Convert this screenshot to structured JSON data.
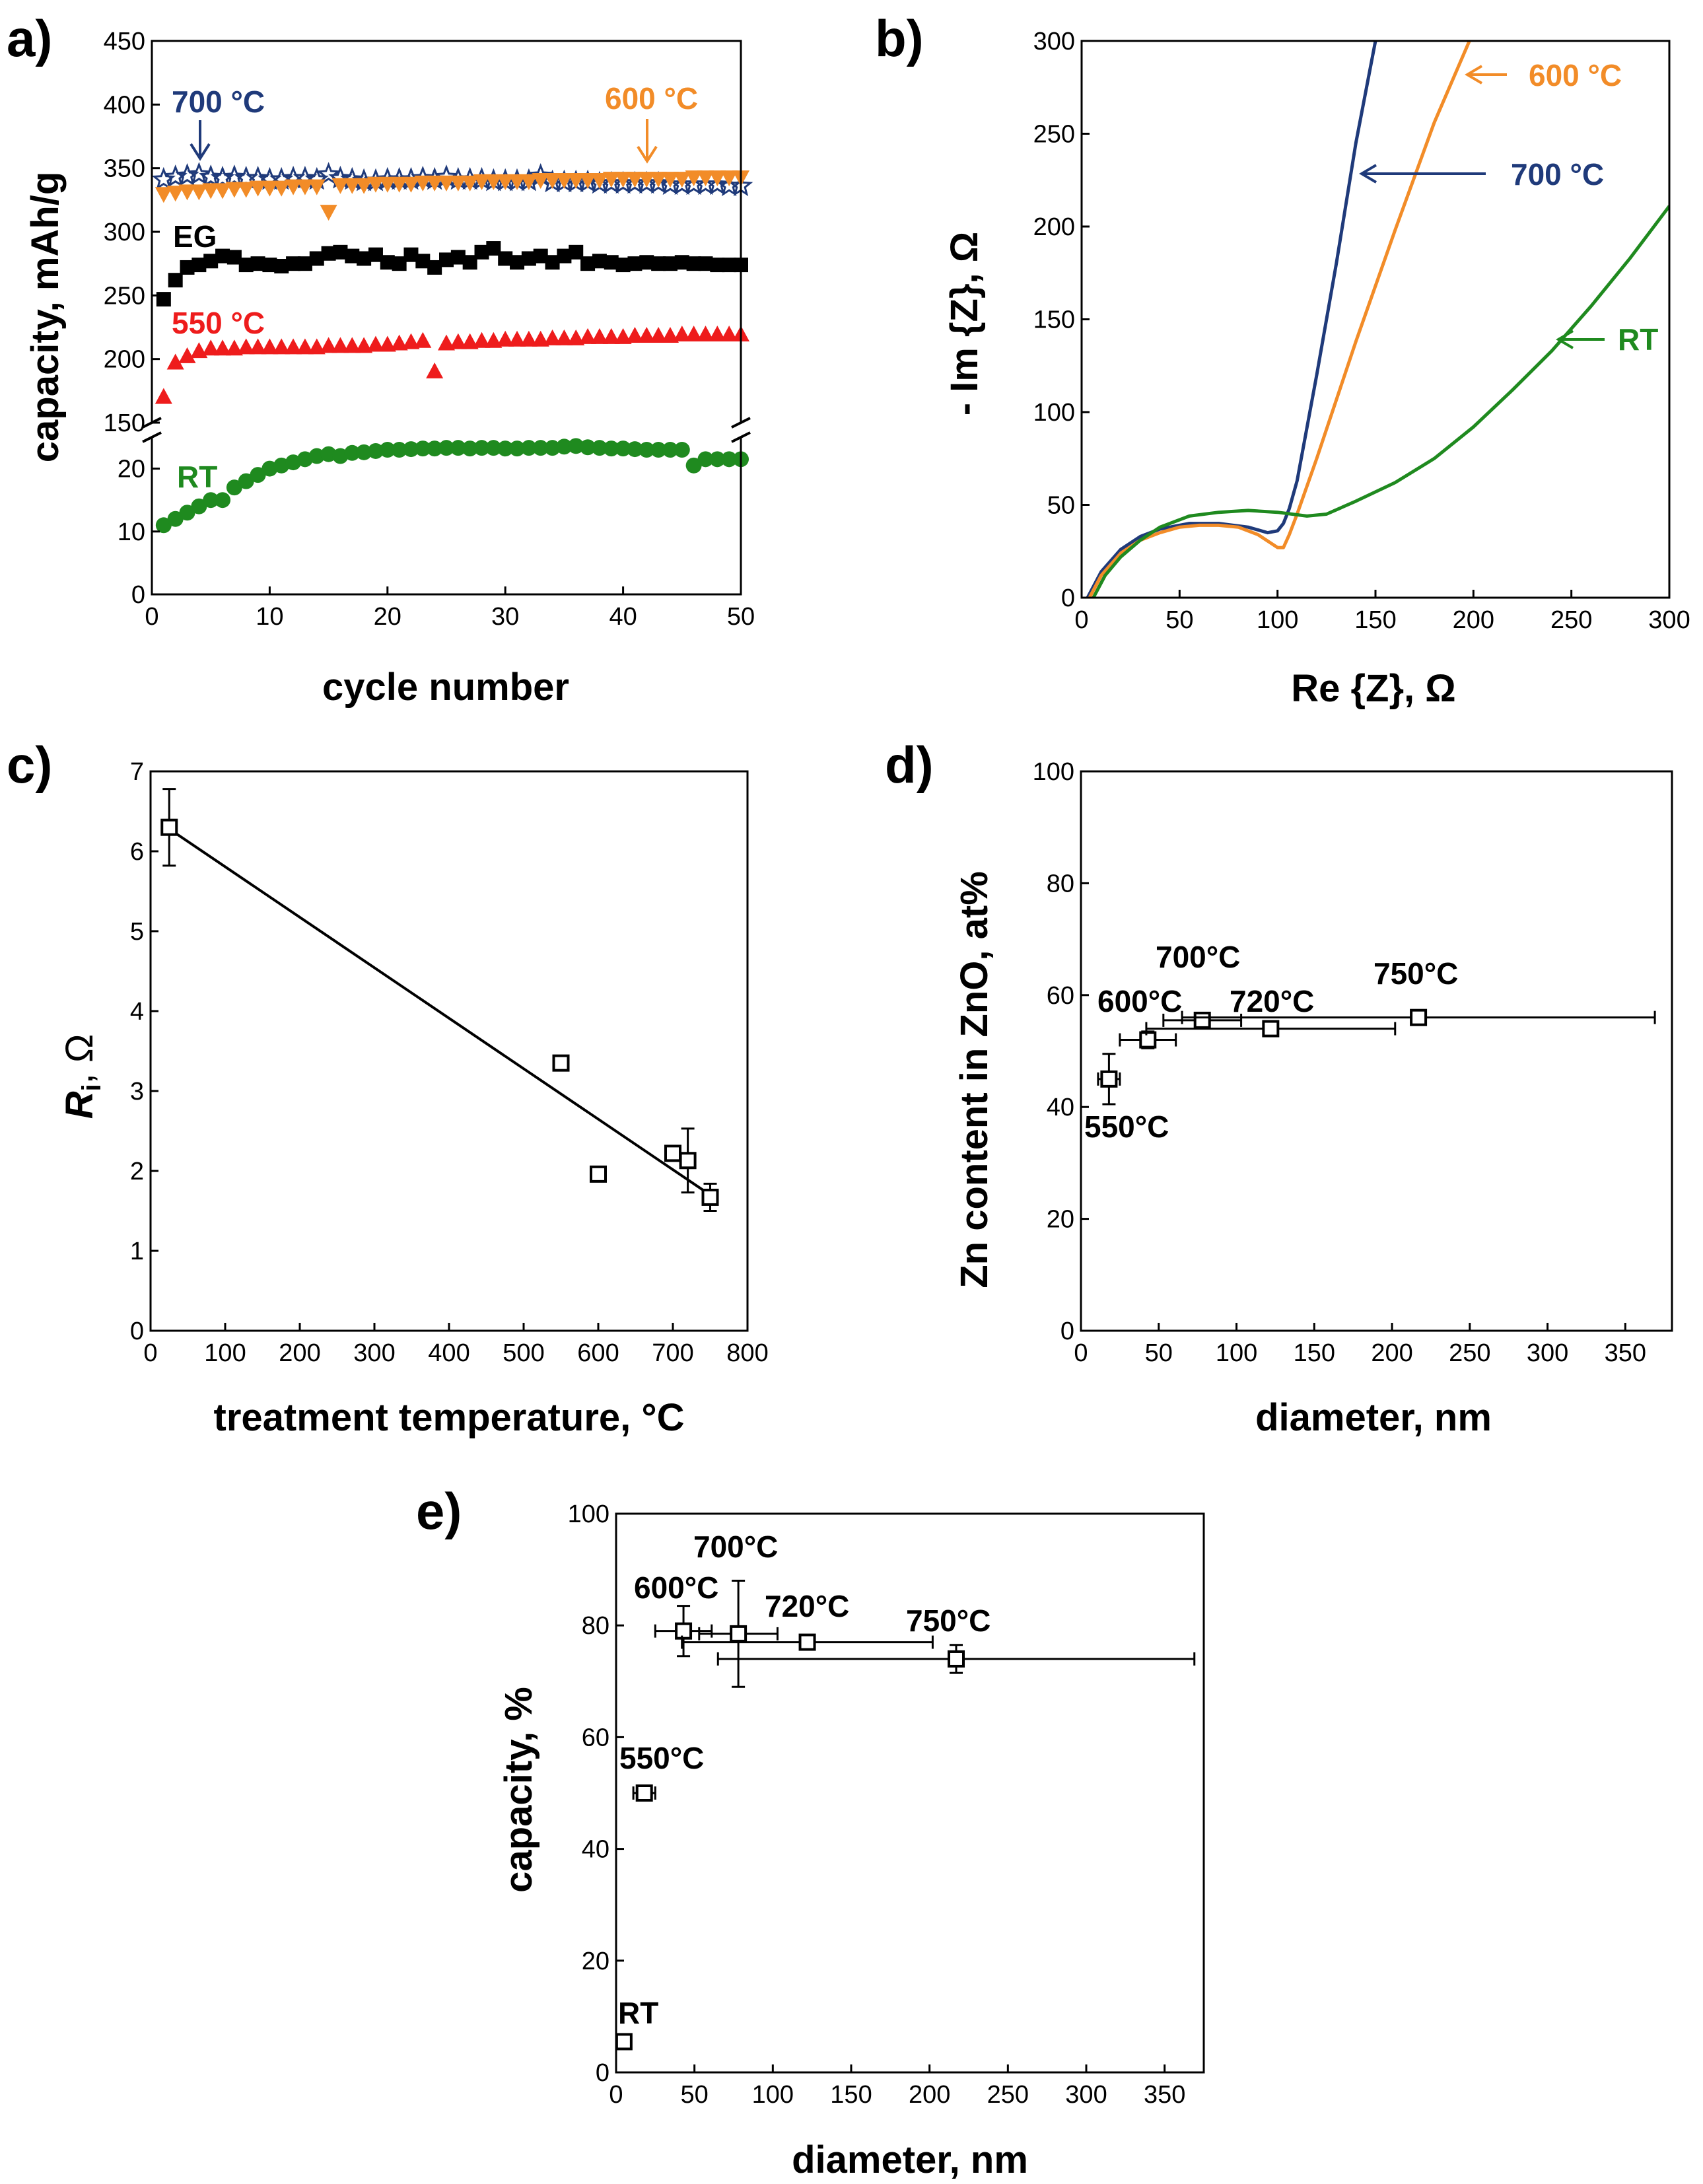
{
  "colors": {
    "c700": "#1f3a7a",
    "c600": "#f28c28",
    "EG": "#000000",
    "c550": "#ee1c1c",
    "RT": "#1f8a1f"
  },
  "chart_data": [
    {
      "id": "a",
      "panel_label": "a)",
      "type": "scatter",
      "title": "",
      "xlabel": "cycle number",
      "ylabel": "capacity, mAh/g",
      "xlim": [
        0,
        50
      ],
      "xticks": [
        0,
        10,
        20,
        30,
        40,
        50
      ],
      "ylim_upper": [
        150,
        450
      ],
      "yticks_upper": [
        150,
        200,
        250,
        300,
        350,
        400,
        450
      ],
      "ylim_lower": [
        0,
        25
      ],
      "yticks_lower": [
        0,
        10,
        20
      ],
      "series": [
        {
          "name": "700 °C",
          "label": "700 °C",
          "color": "#1f3a7a",
          "marker": "star",
          "x": [
            1,
            2,
            3,
            4,
            5,
            6,
            7,
            8,
            9,
            10,
            11,
            12,
            13,
            14,
            15,
            16,
            17,
            18,
            19,
            20,
            21,
            22,
            23,
            24,
            25,
            26,
            27,
            28,
            29,
            30,
            31,
            32,
            33,
            34,
            35,
            36,
            37,
            38,
            39,
            40,
            41,
            42,
            43,
            44,
            45,
            46,
            47,
            48,
            49,
            50
          ],
          "y": [
            341,
            343,
            344,
            345,
            343,
            342,
            343,
            342,
            342,
            341,
            341,
            342,
            342,
            341,
            345,
            342,
            341,
            340,
            340,
            341,
            341,
            341,
            342,
            341,
            343,
            341,
            341,
            341,
            340,
            340,
            340,
            340,
            344,
            339,
            339,
            339,
            339,
            338,
            338,
            338,
            338,
            338,
            338,
            337,
            337,
            337,
            337,
            337,
            336,
            336
          ]
        },
        {
          "name": "600 °C",
          "label": "600 °C",
          "color": "#f28c28",
          "marker": "triangle-down",
          "x": [
            1,
            2,
            3,
            4,
            5,
            6,
            7,
            8,
            9,
            10,
            11,
            12,
            13,
            14,
            15,
            16,
            17,
            18,
            19,
            20,
            21,
            22,
            23,
            24,
            25,
            26,
            27,
            28,
            29,
            30,
            31,
            32,
            33,
            34,
            35,
            36,
            37,
            38,
            39,
            40,
            41,
            42,
            43,
            44,
            45,
            46,
            47,
            48,
            49,
            50
          ],
          "y": [
            330,
            331,
            332,
            332,
            333,
            333,
            334,
            334,
            335,
            335,
            335,
            336,
            336,
            336,
            316,
            337,
            337,
            337,
            338,
            338,
            338,
            338,
            339,
            339,
            339,
            339,
            339,
            340,
            340,
            340,
            340,
            340,
            341,
            341,
            341,
            341,
            341,
            341,
            342,
            342,
            342,
            342,
            342,
            342,
            342,
            343,
            343,
            343,
            343,
            343
          ]
        },
        {
          "name": "EG",
          "label": "EG",
          "color": "#000000",
          "marker": "square",
          "x": [
            1,
            2,
            3,
            4,
            5,
            6,
            7,
            8,
            9,
            10,
            11,
            12,
            13,
            14,
            15,
            16,
            17,
            18,
            19,
            20,
            21,
            22,
            23,
            24,
            25,
            26,
            27,
            28,
            29,
            30,
            31,
            32,
            33,
            34,
            35,
            36,
            37,
            38,
            39,
            40,
            41,
            42,
            43,
            44,
            45,
            46,
            47,
            48,
            49,
            50
          ],
          "y": [
            247,
            262,
            272,
            274,
            277,
            281,
            280,
            274,
            275,
            274,
            273,
            275,
            275,
            279,
            283,
            284,
            281,
            279,
            282,
            276,
            275,
            282,
            277,
            272,
            278,
            280,
            276,
            284,
            287,
            279,
            276,
            279,
            281,
            276,
            281,
            284,
            275,
            277,
            276,
            274,
            275,
            276,
            275,
            275,
            276,
            275,
            275,
            274,
            274,
            274
          ]
        },
        {
          "name": "550 °C",
          "label": "550 °C",
          "color": "#ee1c1c",
          "marker": "triangle-up",
          "x": [
            1,
            2,
            3,
            4,
            5,
            6,
            7,
            8,
            9,
            10,
            11,
            12,
            13,
            14,
            15,
            16,
            17,
            18,
            19,
            20,
            21,
            22,
            23,
            24,
            25,
            26,
            27,
            28,
            29,
            30,
            31,
            32,
            33,
            34,
            35,
            36,
            37,
            38,
            39,
            40,
            41,
            42,
            43,
            44,
            45,
            46,
            47,
            48,
            49,
            50
          ],
          "y": [
            170,
            197,
            202,
            206,
            208,
            208,
            208,
            209,
            209,
            209,
            209,
            209,
            209,
            209,
            210,
            210,
            210,
            210,
            211,
            211,
            212,
            213,
            214,
            190,
            212,
            213,
            213,
            214,
            214,
            215,
            215,
            215,
            215,
            216,
            216,
            216,
            217,
            217,
            217,
            217,
            218,
            218,
            218,
            218,
            219,
            219,
            219,
            219,
            219,
            219
          ]
        },
        {
          "name": "RT",
          "label": "RT",
          "color": "#1f8a1f",
          "marker": "circle",
          "x": [
            1,
            2,
            3,
            4,
            5,
            6,
            7,
            8,
            9,
            10,
            11,
            12,
            13,
            14,
            15,
            16,
            17,
            18,
            19,
            20,
            21,
            22,
            23,
            24,
            25,
            26,
            27,
            28,
            29,
            30,
            31,
            32,
            33,
            34,
            35,
            36,
            37,
            38,
            39,
            40,
            41,
            42,
            43,
            44,
            45,
            46,
            47,
            48,
            49,
            50
          ],
          "y": [
            11,
            12,
            13,
            14,
            15,
            15,
            17,
            18,
            19,
            20,
            20.5,
            21,
            21.5,
            22,
            22.3,
            22,
            22.5,
            22.6,
            22.8,
            23,
            23,
            23.1,
            23.2,
            23.2,
            23.3,
            23.3,
            23.2,
            23.3,
            23.3,
            23.2,
            23.2,
            23.3,
            23.3,
            23.3,
            23.5,
            23.6,
            23.4,
            23.3,
            23.2,
            23.2,
            23.1,
            23,
            23,
            23,
            23,
            20.5,
            21.5,
            21.5,
            21.5,
            21.5
          ]
        }
      ]
    },
    {
      "id": "b",
      "panel_label": "b)",
      "type": "line",
      "title": "",
      "xlabel": "Re {Z}, Ω",
      "ylabel": "- Im {Z}, Ω",
      "xlim": [
        0,
        300
      ],
      "ylim": [
        0,
        300
      ],
      "xticks": [
        0,
        50,
        100,
        150,
        200,
        250,
        300
      ],
      "yticks": [
        0,
        50,
        100,
        150,
        200,
        250,
        300
      ],
      "series": [
        {
          "name": "700 °C",
          "label": "700 °C",
          "color": "#1f3a7a",
          "x": [
            3,
            10,
            20,
            30,
            40,
            55,
            70,
            85,
            95,
            100,
            103,
            106,
            110,
            120,
            130,
            140,
            150
          ],
          "y": [
            0,
            14,
            26,
            33,
            37,
            40,
            40,
            38,
            35,
            36,
            40,
            48,
            63,
            120,
            180,
            245,
            300
          ]
        },
        {
          "name": "600 °C",
          "label": "600 °C",
          "color": "#f28c28",
          "x": [
            4,
            10,
            20,
            30,
            40,
            50,
            60,
            70,
            80,
            90,
            100,
            103,
            106,
            110,
            120,
            140,
            160,
            180,
            200
          ],
          "y": [
            0,
            12,
            24,
            31,
            35,
            38,
            39,
            39,
            38,
            34,
            27,
            27,
            34,
            45,
            75,
            138,
            198,
            256,
            305
          ]
        },
        {
          "name": "RT",
          "label": "RT",
          "color": "#1f8a1f",
          "x": [
            6,
            12,
            20,
            30,
            40,
            55,
            70,
            85,
            100,
            115,
            125,
            140,
            160,
            180,
            200,
            220,
            240,
            260,
            280,
            300
          ],
          "y": [
            0,
            12,
            22,
            31,
            38,
            44,
            46,
            47,
            46,
            44,
            45,
            52,
            62,
            75,
            92,
            112,
            133,
            157,
            183,
            211
          ]
        }
      ]
    },
    {
      "id": "c",
      "panel_label": "c)",
      "type": "scatter",
      "title": "",
      "xlabel": "treatment temperature, °C",
      "ylabel_main": "R",
      "ylabel_sub": "i",
      "ylabel_rest": ", Ω",
      "xlim": [
        0,
        800
      ],
      "ylim": [
        0,
        7
      ],
      "xticks": [
        0,
        100,
        200,
        300,
        400,
        500,
        600,
        700,
        800
      ],
      "yticks": [
        0,
        1,
        2,
        3,
        4,
        5,
        6,
        7
      ],
      "points": [
        {
          "x": 25,
          "y": 6.3,
          "yerr": 0.48
        },
        {
          "x": 550,
          "y": 3.35,
          "yerr": 0
        },
        {
          "x": 600,
          "y": 1.96,
          "yerr": 0.05
        },
        {
          "x": 700,
          "y": 2.22,
          "yerr": 0.06
        },
        {
          "x": 720,
          "y": 2.13,
          "yerr": 0.4
        },
        {
          "x": 750,
          "y": 1.67,
          "yerr": 0.17
        }
      ],
      "fit": {
        "x": [
          25,
          750
        ],
        "y": [
          6.28,
          1.7
        ]
      }
    },
    {
      "id": "d",
      "panel_label": "d)",
      "type": "scatter",
      "title": "",
      "xlabel": "diameter, nm",
      "ylabel": "Zn content in ZnO, at%",
      "xlim": [
        0,
        380
      ],
      "ylim": [
        0,
        100
      ],
      "xticks": [
        0,
        50,
        100,
        150,
        200,
        250,
        300,
        350
      ],
      "yticks": [
        0,
        20,
        40,
        60,
        80,
        100
      ],
      "points": [
        {
          "label": "550°C",
          "x": 18,
          "y": 45,
          "xerr": 7,
          "yerr": 4.5
        },
        {
          "label": "600°C",
          "x": 43,
          "y": 52,
          "xerr": 18,
          "yerr": 1.5
        },
        {
          "label": "700°C",
          "x": 78,
          "y": 55.5,
          "xerr": 25,
          "yerr": 1
        },
        {
          "label": "720°C",
          "x": 122,
          "y": 54,
          "xerr": 80,
          "yerr": 1
        },
        {
          "label": "750°C",
          "x": 217,
          "y": 56,
          "xerr": 152,
          "yerr": 1
        }
      ]
    },
    {
      "id": "e",
      "panel_label": "e)",
      "type": "scatter",
      "title": "",
      "xlabel": "diameter, nm",
      "ylabel": "capacity, %",
      "xlim": [
        0,
        375
      ],
      "ylim": [
        0,
        100
      ],
      "xticks": [
        0,
        50,
        100,
        150,
        200,
        250,
        300,
        350
      ],
      "yticks": [
        0,
        20,
        40,
        60,
        80,
        100
      ],
      "points": [
        {
          "label": "RT",
          "x": 5,
          "y": 5.5,
          "xerr": 2,
          "yerr": 0.5
        },
        {
          "label": "550°C",
          "x": 18,
          "y": 50,
          "xerr": 7,
          "yerr": 0.5
        },
        {
          "label": "600°C",
          "x": 43,
          "y": 79,
          "xerr": 18,
          "yerr": 4.5
        },
        {
          "label": "700°C",
          "x": 78,
          "y": 78.5,
          "xerr": 25,
          "yerr": 9.5
        },
        {
          "label": "720°C",
          "x": 122,
          "y": 77,
          "xerr": 80,
          "yerr": 1
        },
        {
          "label": "750°C",
          "x": 217,
          "y": 74,
          "xerr": 152,
          "yerr": 2.5
        }
      ]
    }
  ]
}
